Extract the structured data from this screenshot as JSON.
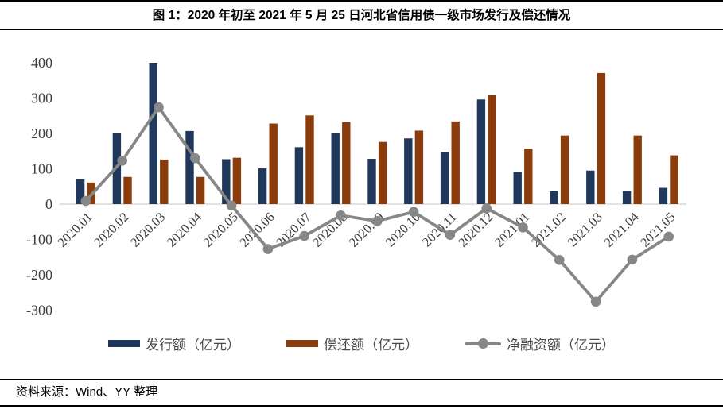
{
  "header": {
    "title": "图 1：2020 年初至 2021 年 5 月 25 日河北省信用债一级市场发行及偿还情况"
  },
  "footer": {
    "source": "资料来源：Wind、YY 整理"
  },
  "colors": {
    "issue": "#20385c",
    "repay": "#8a3c0d",
    "net": "#878787",
    "zero_axis": "#d9d9d9",
    "tick_text": "#3d3d3d"
  },
  "chart_data": {
    "type": "bar",
    "subtype": "grouped-bars-with-line",
    "title": "图 1：2020 年初至 2021 年 5 月 25 日河北省信用债一级市场发行及偿还情况",
    "xlabel": "",
    "ylabel": "",
    "ylim": [
      -300,
      400
    ],
    "y_ticks": [
      400,
      300,
      200,
      100,
      0,
      -100,
      -200,
      -300
    ],
    "grid": "zero-line-only",
    "legend_position": "bottom",
    "categories": [
      "2020.01",
      "2020.02",
      "2020.03",
      "2020.04",
      "2020.05",
      "2020.06",
      "2020.07",
      "2020.08",
      "2020.09",
      "2020.10",
      "2020.11",
      "2020.12",
      "2021.01",
      "2021.02",
      "2021.03",
      "2021.04",
      "2021.05"
    ],
    "series": [
      {
        "name": "发行额（亿元）",
        "type": "bar",
        "color_key": "issue",
        "values": [
          70,
          200,
          400,
          207,
          127,
          101,
          161,
          200,
          128,
          186,
          147,
          296,
          91,
          36,
          95,
          37,
          46
        ]
      },
      {
        "name": "偿还额（亿元）",
        "type": "bar",
        "color_key": "repay",
        "values": [
          61,
          77,
          126,
          77,
          131,
          228,
          251,
          232,
          176,
          208,
          234,
          308,
          157,
          194,
          371,
          194,
          138
        ]
      },
      {
        "name": "净融资额（亿元）",
        "type": "line",
        "color_key": "net",
        "values": [
          9,
          123,
          274,
          130,
          -4,
          -127,
          -90,
          -32,
          -48,
          -22,
          -87,
          -12,
          -66,
          -158,
          -276,
          -157,
          -92
        ]
      }
    ]
  }
}
